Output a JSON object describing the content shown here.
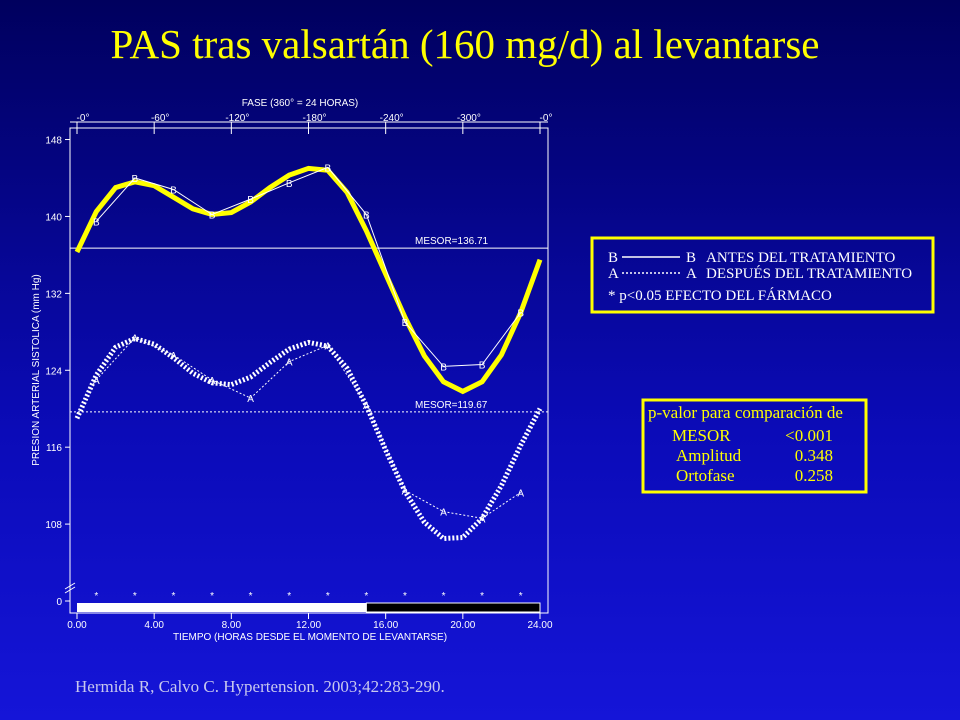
{
  "chart_data": {
    "type": "line",
    "title": "PAS tras valsartán (160 mg/d) al levantarse",
    "top_axis_label": "FASE  (360° = 24 HORAS)",
    "phase_labels": [
      "-0°",
      "-60°",
      "-120°",
      "-180°",
      "-240°",
      "-300°",
      "-0°"
    ],
    "x_label": "TIEMPO (HORAS DESDE EL MOMENTO DE LEVANTARSE)",
    "y_label": "PRESION ARTERIAL SISTOLICA (mm Hg)",
    "xlim": [
      0,
      24
    ],
    "xticks": [
      {
        "value": 0,
        "label": "0.00"
      },
      {
        "value": 4,
        "label": "4.00"
      },
      {
        "value": 8,
        "label": "8.00"
      },
      {
        "value": 12,
        "label": "12.00"
      },
      {
        "value": 16,
        "label": "16.00"
      },
      {
        "value": 20,
        "label": "20.00"
      },
      {
        "value": 24,
        "label": "24.00"
      }
    ],
    "ylim": [
      100,
      149.2
    ],
    "yticks": [
      108,
      116,
      124,
      132,
      140,
      148
    ],
    "axis_break_tick": 0,
    "fit_x": [
      0,
      1,
      2,
      3,
      4,
      5,
      6,
      7,
      8,
      9,
      10,
      11,
      12,
      13,
      14,
      15,
      16,
      17,
      18,
      19,
      20,
      21,
      22,
      23,
      24
    ],
    "series": [
      {
        "name": "ANTES DEL TRATAMIENTO",
        "marker": "B",
        "color": "#ffff00",
        "line_style": "solid",
        "x": [
          1,
          3,
          5,
          7,
          9,
          11,
          13,
          15,
          17,
          19,
          21,
          23
        ],
        "values": [
          139.5,
          144,
          142.8,
          140.2,
          141.8,
          143.5,
          145.1,
          140.2,
          129,
          124.4,
          124.6,
          130
        ],
        "fit": [
          136.3,
          140.5,
          143,
          143.6,
          143.2,
          142,
          140.8,
          140.2,
          140.4,
          141.5,
          143,
          144.3,
          145,
          144.8,
          142.5,
          138.5,
          134,
          129.5,
          125.5,
          122.8,
          121.8,
          122.8,
          125.6,
          130,
          135.5
        ],
        "mesor": 136.71,
        "mesor_label": "MESOR=136.71"
      },
      {
        "name": "DESPUÉS DEL TRATAMIENTO",
        "marker": "A",
        "color": "#ffffff",
        "line_style": "dotted",
        "x": [
          1,
          3,
          5,
          7,
          9,
          11,
          13,
          15,
          17,
          19,
          21,
          23
        ],
        "values": [
          123,
          127.4,
          125.6,
          123,
          121.1,
          124.9,
          126.6,
          120.4,
          111.5,
          109.3,
          108.6,
          111.3
        ],
        "fit": [
          119,
          123.5,
          126.4,
          127.3,
          126.7,
          125.3,
          123.7,
          122.7,
          122.5,
          123.3,
          124.8,
          126.2,
          126.9,
          126.5,
          124.2,
          120.3,
          115.7,
          111.4,
          108.2,
          106.5,
          106.6,
          108.6,
          112,
          116.2,
          120
        ],
        "mesor": 119.67,
        "mesor_label": "MESOR=119.67"
      }
    ],
    "significance_marker": "*",
    "significant_hours": [
      1,
      3,
      5,
      7,
      9,
      11,
      13,
      15,
      17,
      19,
      21,
      23
    ],
    "sleep_span": [
      15,
      24
    ],
    "legend_note": "* p<0.05  EFECTO DEL FÁRMACO",
    "stats_box": {
      "title": "p-valor para comparación de",
      "rows": [
        [
          "MESOR",
          "<0.001"
        ],
        [
          "Amplitud",
          "0.348"
        ],
        [
          "Ortofase",
          "0.258"
        ]
      ]
    },
    "citation": "Hermida R, Calvo C. Hypertension. 2003;42:283-290."
  }
}
